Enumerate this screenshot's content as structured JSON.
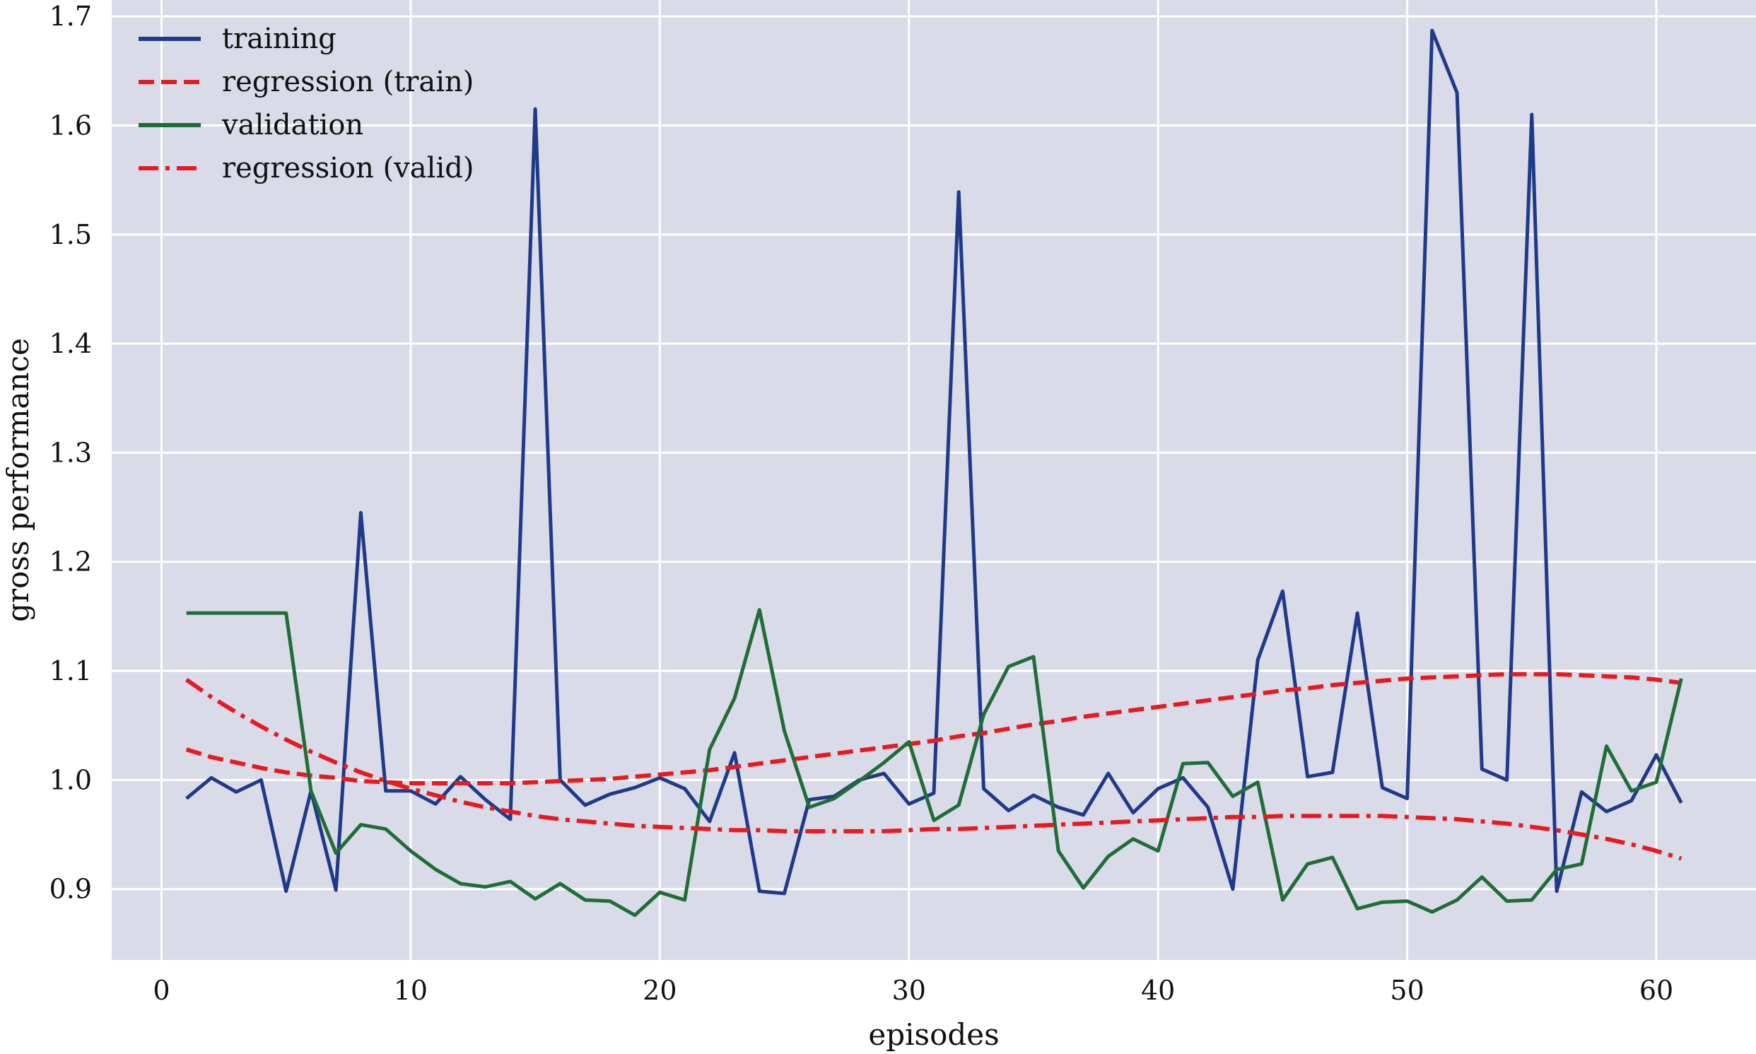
{
  "chart_data": {
    "type": "line",
    "title": "",
    "xlabel": "episodes",
    "ylabel": "gross performance",
    "xlim": [
      -2,
      64
    ],
    "ylim": [
      0.835,
      1.715
    ],
    "xticks": [
      0,
      10,
      20,
      30,
      40,
      50,
      60
    ],
    "yticks": [
      0.9,
      1.0,
      1.1,
      1.2,
      1.3,
      1.4,
      1.5,
      1.6,
      1.7
    ],
    "xtick_labels": [
      "0",
      "10",
      "20",
      "30",
      "40",
      "50",
      "60"
    ],
    "ytick_labels": [
      "0.9",
      "1.0",
      "1.1",
      "1.2",
      "1.3",
      "1.4",
      "1.5",
      "1.6",
      "1.7"
    ],
    "grid": true,
    "legend_position": "top-left",
    "background_color": "#dadbe8",
    "x": [
      1,
      2,
      3,
      4,
      5,
      6,
      7,
      8,
      9,
      10,
      11,
      12,
      13,
      14,
      15,
      16,
      17,
      18,
      19,
      20,
      21,
      22,
      23,
      24,
      25,
      26,
      27,
      28,
      29,
      30,
      31,
      32,
      33,
      34,
      35,
      36,
      37,
      38,
      39,
      40,
      41,
      42,
      43,
      44,
      45,
      46,
      47,
      48,
      49,
      50,
      51,
      52,
      53,
      54,
      55,
      56,
      57,
      58,
      59,
      60,
      61
    ],
    "series": [
      {
        "name": "training",
        "color": "#1f3a8a",
        "style": "solid",
        "values": [
          0.983,
          1.002,
          0.989,
          1.0,
          0.898,
          0.99,
          0.899,
          1.245,
          0.99,
          0.99,
          0.978,
          1.003,
          0.982,
          0.964,
          1.615,
          1.0,
          0.977,
          0.987,
          0.993,
          1.002,
          0.992,
          0.962,
          1.025,
          0.898,
          0.896,
          0.982,
          0.985,
          1.0,
          1.006,
          0.978,
          0.988,
          1.539,
          0.992,
          0.972,
          0.986,
          0.975,
          0.968,
          1.006,
          0.97,
          0.992,
          1.002,
          0.975,
          0.9,
          1.11,
          1.173,
          1.003,
          1.007,
          1.153,
          0.993,
          0.983,
          1.687,
          1.63,
          1.01,
          1.0,
          1.61,
          0.898,
          0.989,
          0.971,
          0.981,
          1.023,
          0.979
        ]
      },
      {
        "name": "regression (train)",
        "color": "#e8191f",
        "style": "dashed",
        "values": [
          1.028,
          1.021,
          1.016,
          1.011,
          1.007,
          1.004,
          1.002,
          0.999,
          0.998,
          0.997,
          0.997,
          0.997,
          0.997,
          0.997,
          0.998,
          0.999,
          1.0,
          1.001,
          1.003,
          1.005,
          1.007,
          1.009,
          1.012,
          1.015,
          1.018,
          1.021,
          1.024,
          1.027,
          1.03,
          1.033,
          1.036,
          1.04,
          1.043,
          1.047,
          1.051,
          1.054,
          1.058,
          1.061,
          1.064,
          1.067,
          1.07,
          1.073,
          1.076,
          1.079,
          1.082,
          1.084,
          1.087,
          1.089,
          1.091,
          1.093,
          1.094,
          1.095,
          1.096,
          1.097,
          1.097,
          1.097,
          1.096,
          1.095,
          1.094,
          1.092,
          1.089
        ]
      },
      {
        "name": "validation",
        "color": "#1f6e37",
        "style": "solid",
        "values": [
          1.153,
          1.153,
          1.153,
          1.153,
          1.153,
          0.99,
          0.933,
          0.959,
          0.955,
          0.935,
          0.918,
          0.905,
          0.902,
          0.907,
          0.891,
          0.905,
          0.89,
          0.889,
          0.876,
          0.897,
          0.89,
          1.028,
          1.075,
          1.156,
          1.045,
          0.975,
          0.983,
          0.999,
          1.016,
          1.035,
          0.963,
          0.977,
          1.06,
          1.104,
          1.113,
          0.935,
          0.901,
          0.93,
          0.946,
          0.935,
          1.015,
          1.016,
          0.985,
          0.998,
          0.89,
          0.923,
          0.929,
          0.882,
          0.888,
          0.889,
          0.879,
          0.89,
          0.911,
          0.889,
          0.89,
          0.918,
          0.923,
          1.031,
          0.99,
          0.998,
          1.093
        ]
      },
      {
        "name": "regression (valid)",
        "color": "#e8191f",
        "style": "dashdot",
        "values": [
          1.092,
          1.076,
          1.062,
          1.049,
          1.037,
          1.026,
          1.016,
          1.007,
          0.999,
          0.992,
          0.986,
          0.98,
          0.975,
          0.971,
          0.967,
          0.964,
          0.962,
          0.96,
          0.958,
          0.957,
          0.956,
          0.955,
          0.954,
          0.954,
          0.953,
          0.953,
          0.953,
          0.953,
          0.953,
          0.954,
          0.955,
          0.955,
          0.956,
          0.957,
          0.958,
          0.959,
          0.96,
          0.961,
          0.962,
          0.963,
          0.964,
          0.965,
          0.966,
          0.966,
          0.967,
          0.967,
          0.967,
          0.967,
          0.967,
          0.966,
          0.965,
          0.964,
          0.962,
          0.96,
          0.957,
          0.954,
          0.95,
          0.946,
          0.941,
          0.935,
          0.928
        ]
      }
    ]
  }
}
